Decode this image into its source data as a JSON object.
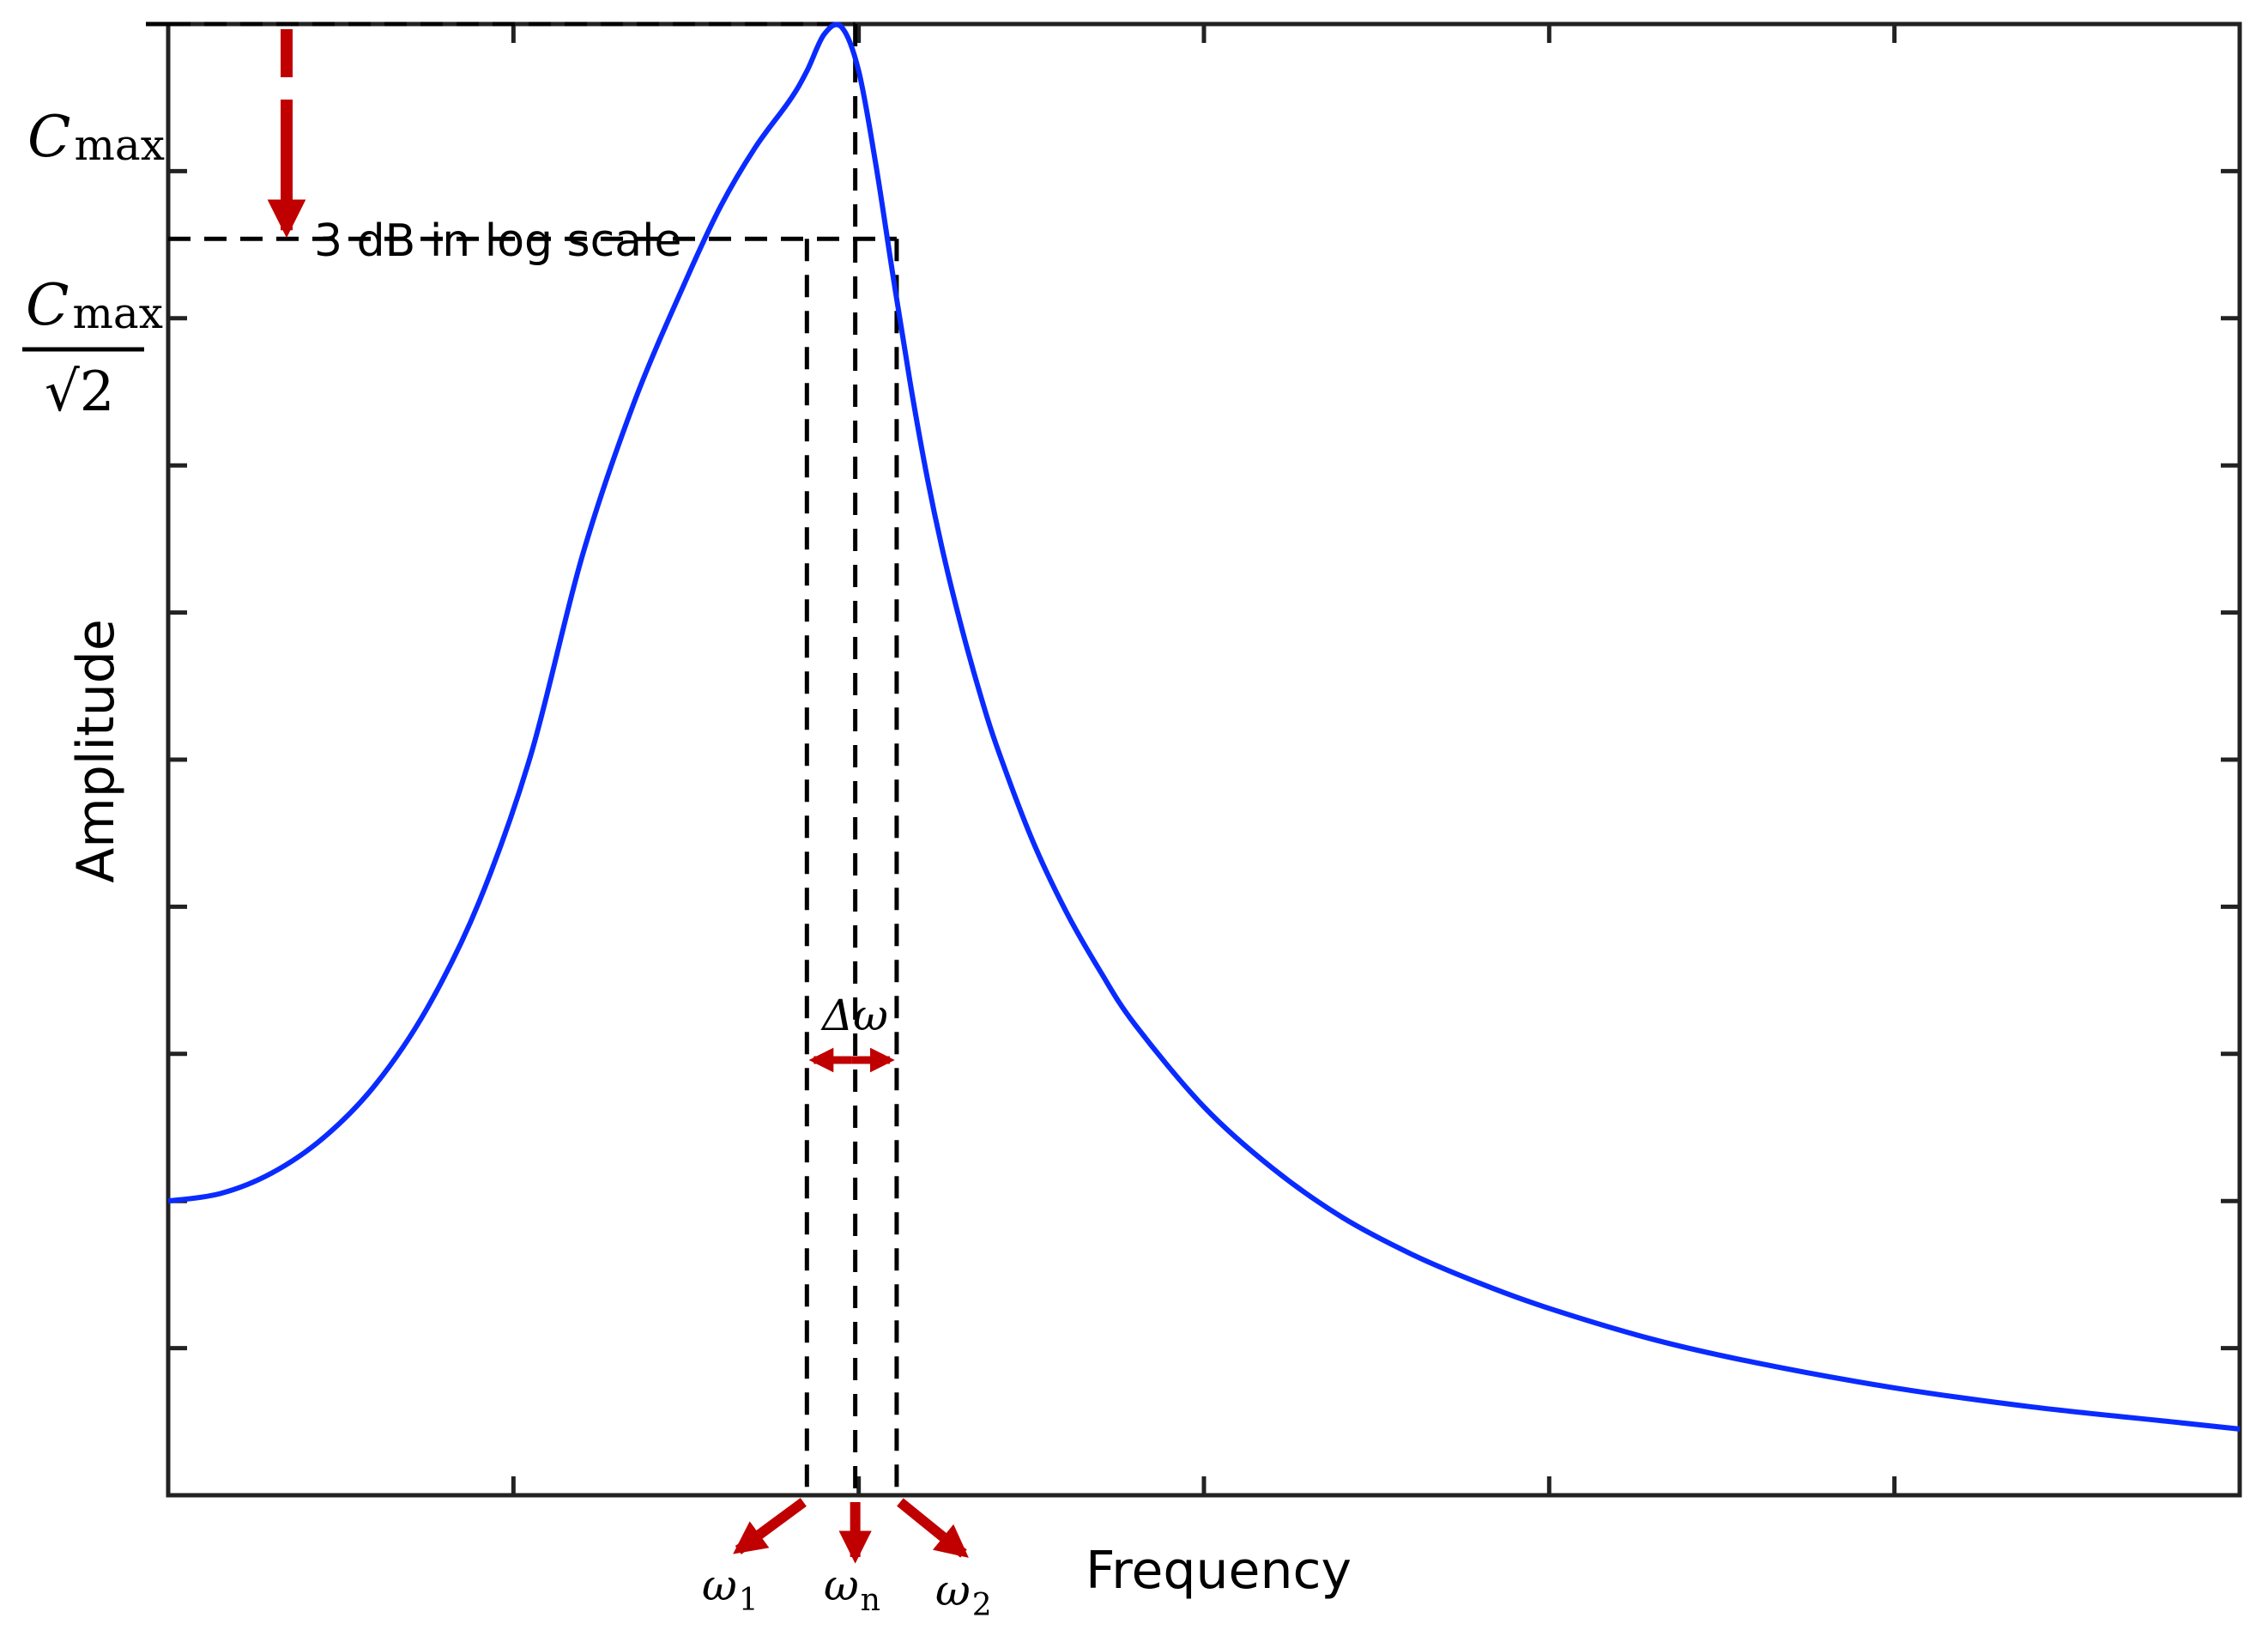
{
  "chart_data": {
    "type": "line",
    "title": "",
    "xlabel": "Frequency",
    "ylabel": "Amplitude",
    "grid": false,
    "legend": "none",
    "xlim": [
      0,
      6
    ],
    "ylim": [
      0,
      10
    ],
    "series": [
      {
        "color": "#0a2bff",
        "x": [
          0.0,
          0.15,
          0.3,
          0.45,
          0.6,
          0.75,
          0.9,
          1.05,
          1.2,
          1.35,
          1.5,
          1.6,
          1.7,
          1.8,
          1.85,
          1.9,
          1.95,
          2.0,
          2.05,
          2.1,
          2.15,
          2.2,
          2.25,
          2.3,
          2.35,
          2.4,
          2.5,
          2.6,
          2.7,
          2.8,
          3.0,
          3.2,
          3.4,
          3.6,
          3.8,
          4.0,
          4.3,
          4.6,
          5.0,
          5.4,
          5.8,
          6.0
        ],
        "y": [
          2.0,
          2.05,
          2.19,
          2.43,
          2.79,
          3.31,
          4.03,
          5.03,
          6.39,
          7.43,
          8.26,
          8.76,
          9.16,
          9.48,
          9.68,
          9.93,
          9.98,
          9.68,
          9.04,
          8.28,
          7.55,
          6.9,
          6.35,
          5.88,
          5.46,
          5.09,
          4.47,
          3.97,
          3.56,
          3.2,
          2.64,
          2.22,
          1.89,
          1.64,
          1.44,
          1.27,
          1.06,
          0.9,
          0.73,
          0.6,
          0.5,
          0.45
        ]
      }
    ],
    "x_ticks_count": 6,
    "y_ticks_count": 11,
    "reference_levels": {
      "peak": 10.0,
      "half_power": 8.54
    },
    "reference_frequencies": {
      "omega_1": 1.85,
      "omega_n": 1.99,
      "omega_2": 2.11
    },
    "annotations": {
      "cmax_label": "C",
      "cmax_subscript": "max",
      "cmax_sqrt2_num": "C",
      "cmax_sqrt2_num_subscript": "max",
      "cmax_sqrt2_den": "√2",
      "db_note": "3 dB in log scale",
      "delta_omega": "Δω",
      "omega_1_label": "ω",
      "omega_1_sub": "1",
      "omega_n_label": "ω",
      "omega_n_sub": "n",
      "omega_2_label": "ω",
      "omega_2_sub": "2"
    },
    "colors": {
      "curve": "#0a2bff",
      "arrows": "#c00000",
      "guides": "#000000"
    }
  }
}
